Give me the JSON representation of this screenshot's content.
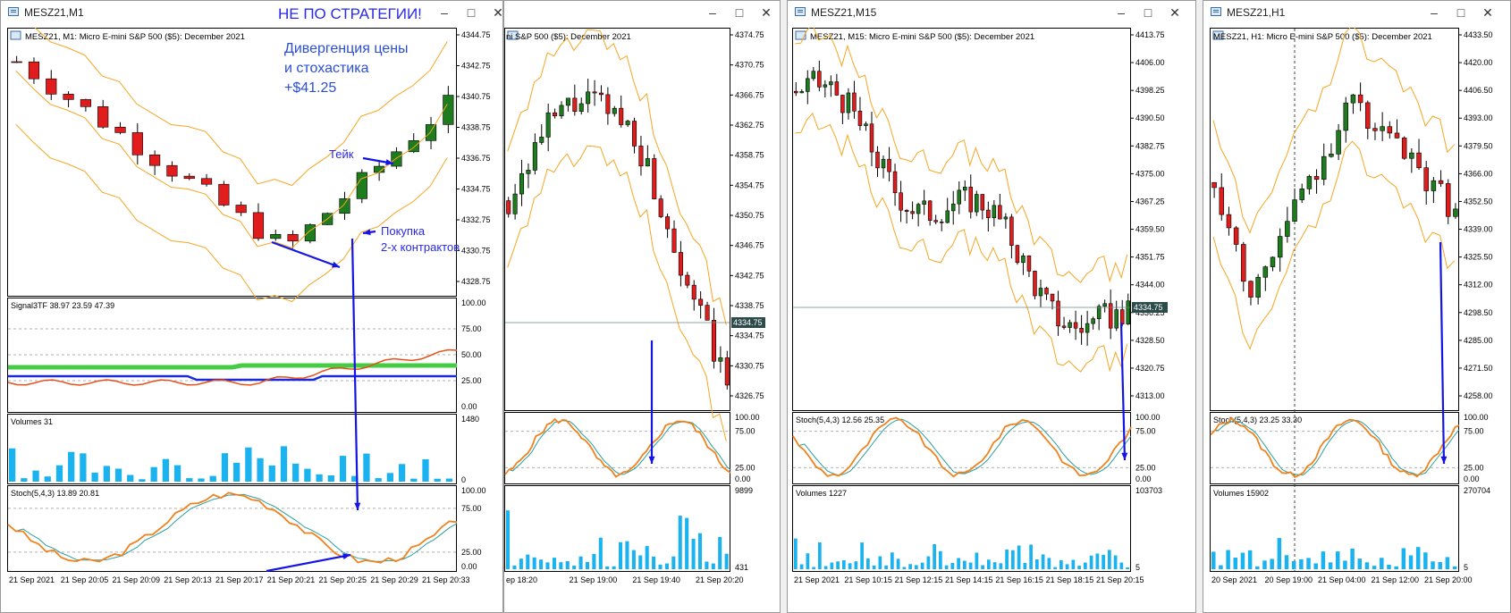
{
  "windows": [
    {
      "id": "m1",
      "title": "MESZ21,M1",
      "focused": true,
      "symbol_label": "MESZ21, M1:  Micro E-mini S&P 500 ($5): December 2021",
      "price_ticks": [
        "4344.75",
        "4342.75",
        "4340.75",
        "4338.75",
        "4336.75",
        "4334.75",
        "4332.75",
        "4330.75",
        "4328.75"
      ],
      "subpanes": [
        {
          "label": "Signal3TF 38.97 23.59 47.39",
          "ticks": [
            "100.00",
            "75.00",
            "50.00",
            "25.00",
            "0.00"
          ]
        },
        {
          "label": "Volumes 31",
          "ticks": [
            "1480",
            "0"
          ]
        },
        {
          "label": "Stoch(5,4,3) 13.89 20.81",
          "ticks": [
            "100.00",
            "75.00",
            "25.00",
            "0.00"
          ]
        }
      ],
      "time_ticks": [
        "21 Sep 2021",
        "21 Sep 20:05",
        "21 Sep 20:09",
        "21 Sep 20:13",
        "21 Sep 20:17",
        "21 Sep 20:21",
        "21 Sep 20:25",
        "21 Sep 20:29",
        "21 Sep 20:33"
      ]
    },
    {
      "id": "m5",
      "title": "",
      "focused": false,
      "symbol_label": "ni S&P 500 ($5): December 2021",
      "price_ticks": [
        "4374.75",
        "4370.75",
        "4366.75",
        "4362.75",
        "4358.75",
        "4354.75",
        "4350.75",
        "4346.75",
        "4342.75",
        "4338.75",
        "4334.75",
        "4330.75",
        "4326.75"
      ],
      "current_price": "4334.75",
      "subpanes": [
        {
          "label": "",
          "ticks": [
            "100.00",
            "75.00",
            "25.00",
            "0.00"
          ]
        },
        {
          "label": "",
          "ticks": [
            "9899",
            "431"
          ]
        }
      ],
      "time_ticks": [
        "ep 18:20",
        "21 Sep 19:00",
        "21 Sep 19:40",
        "21 Sep 20:20"
      ]
    },
    {
      "id": "m15",
      "title": "MESZ21,M15",
      "focused": false,
      "symbol_label": "MESZ21, M15:  Micro E-mini S&P 500 ($5): December 2021",
      "price_ticks": [
        "4413.75",
        "4406.00",
        "4398.25",
        "4390.50",
        "4382.75",
        "4375.00",
        "4367.25",
        "4359.50",
        "4351.75",
        "4344.00",
        "4336.25",
        "4328.50",
        "4320.75",
        "4313.00"
      ],
      "current_price": "4334.75",
      "subpanes": [
        {
          "label": "Stoch(5,4,3) 12.56 25.35",
          "ticks": [
            "100.00",
            "75.00",
            "25.00",
            "0.00"
          ]
        },
        {
          "label": "Volumes 1227",
          "ticks": [
            "103703",
            "5"
          ]
        }
      ],
      "time_ticks": [
        "21 Sep 2021",
        "21 Sep 10:15",
        "21 Sep 12:15",
        "21 Sep 14:15",
        "21 Sep 16:15",
        "21 Sep 18:15",
        "21 Sep 20:15"
      ]
    },
    {
      "id": "h1",
      "title": "MESZ21,H1",
      "focused": false,
      "symbol_label": "MESZ21, H1:  Micro E-mini S&P 500 ($5): December 2021",
      "price_ticks": [
        "4433.50",
        "4420.00",
        "4406.50",
        "4393.00",
        "4379.50",
        "4366.00",
        "4352.50",
        "4339.00",
        "4325.50",
        "4312.00",
        "4298.50",
        "4285.00",
        "4271.50",
        "4258.00"
      ],
      "subpanes": [
        {
          "label": "Stoch(5,4,3) 23.25 33.30",
          "ticks": [
            "100.00",
            "75.00",
            "25.00",
            "0.00"
          ]
        },
        {
          "label": "Volumes 15902",
          "ticks": [
            "270704",
            "5"
          ]
        }
      ],
      "time_ticks": [
        "20 Sep 2021",
        "20 Sep 19:00",
        "21 Sep 04:00",
        "21 Sep 12:00",
        "21 Sep 20:00"
      ]
    }
  ],
  "annotations": {
    "not_strategy": "НЕ ПО СТРАТЕГИИ!",
    "divergence_line1": "Дивергенция цены",
    "divergence_line2": "и стохастика",
    "profit": "+$41.25",
    "take": "Тейк",
    "buy_line1": "Покупка",
    "buy_line2": "2-х контрактов"
  },
  "colors": {
    "bull": "#1e7b1e",
    "bear": "#e11c1c",
    "band": "#f5a623",
    "volume": "#1ab3ef",
    "stoch_main": "#f0821e",
    "stoch_signal": "#2a9d9d",
    "arrow": "#1414e6",
    "signal_green": "#44cc44",
    "signal_blue": "#1a2ad6",
    "signal_red": "#e8501a"
  }
}
